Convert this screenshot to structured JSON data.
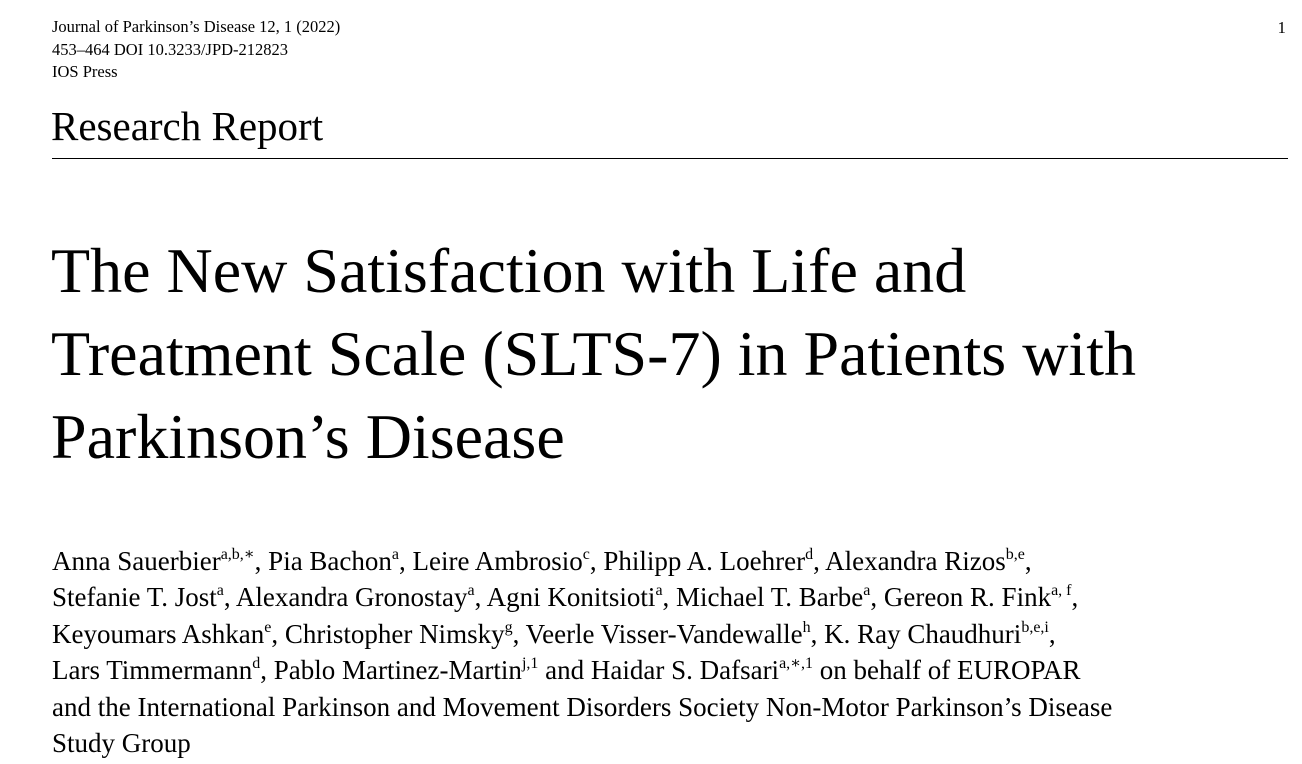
{
  "header": {
    "journal_line": "Journal of Parkinson’s Disease 12, 1 (2022)",
    "pages_doi_line": "453–464 DOI 10.3233/JPD-212823",
    "publisher": "IOS Press",
    "page_number": "1"
  },
  "article_type": "Research Report",
  "title_lines": [
    "The New Satisfaction with Life and",
    "Treatment Scale (SLTS-7) in Patients with",
    "Parkinson’s Disease"
  ],
  "authors": [
    {
      "name": "Anna Sauerbier",
      "sup": "a,b,∗",
      "after": ", "
    },
    {
      "name": "Pia Bachon",
      "sup": "a",
      "after": ", "
    },
    {
      "name": "Leire Ambrosio",
      "sup": "c",
      "after": ", "
    },
    {
      "name": "Philipp A. Loehrer",
      "sup": "d",
      "after": ", "
    },
    {
      "name": "Alexandra Rizos",
      "sup": "b,e",
      "after": ","
    },
    {
      "name": "Stefanie T. Jost",
      "sup": "a",
      "after": ", "
    },
    {
      "name": "Alexandra Gronostay",
      "sup": "a",
      "after": ", "
    },
    {
      "name": "Agni Konitsioti",
      "sup": "a",
      "after": ", "
    },
    {
      "name": "Michael T. Barbe",
      "sup": "a",
      "after": ", "
    },
    {
      "name": "Gereon R. Fink",
      "sup": "a, f",
      "after": ","
    },
    {
      "name": "Keyoumars Ashkan",
      "sup": "e",
      "after": ", "
    },
    {
      "name": "Christopher Nimsky",
      "sup": "g",
      "after": ", "
    },
    {
      "name": "Veerle Visser-Vandewalle",
      "sup": "h",
      "after": ", "
    },
    {
      "name": "K. Ray Chaudhuri",
      "sup": "b,e,i",
      "after": ","
    },
    {
      "name": "Lars Timmermann",
      "sup": "d",
      "after": ", "
    },
    {
      "name": "Pablo Martinez-Martin",
      "sup": "j,1",
      "after": " and "
    },
    {
      "name": "Haidar S. Dafsari",
      "sup": "a,∗,1",
      "after": " on behalf of EUROPAR"
    }
  ],
  "authors_trailing_lines": [
    "and the International Parkinson and Movement Disorders Society Non-Motor Parkinson’s Disease",
    "Study Group"
  ]
}
